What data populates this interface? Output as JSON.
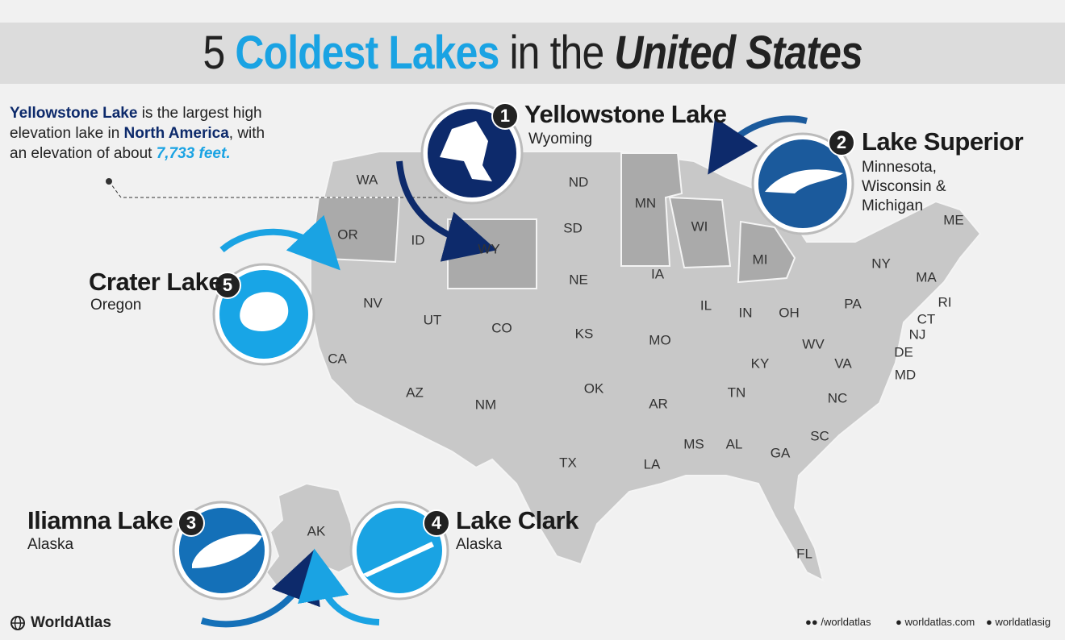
{
  "title": {
    "number": "5",
    "highlight": "Coldest Lakes",
    "middle": "in the",
    "emphasis": "United States"
  },
  "intro": {
    "lake": "Yellowstone Lake",
    "text1": "is the largest high elevation lake in",
    "region": "North America",
    "text2": ", with an elevation of about",
    "elevation": "7,733 feet."
  },
  "lakes": [
    {
      "rank": "1",
      "name": "Yellowstone Lake",
      "location": "Wyoming"
    },
    {
      "rank": "2",
      "name": "Lake Superior",
      "location": "Minnesota, Wisconsin & Michigan"
    },
    {
      "rank": "3",
      "name": "Iliamna Lake",
      "location": "Alaska"
    },
    {
      "rank": "4",
      "name": "Lake Clark",
      "location": "Alaska"
    },
    {
      "rank": "5",
      "name": "Crater Lake",
      "location": "Oregon"
    }
  ],
  "states": [
    "WA",
    "OR",
    "ID",
    "WY",
    "ND",
    "SD",
    "NE",
    "MN",
    "WI",
    "MI",
    "IA",
    "IL",
    "IN",
    "OH",
    "NY",
    "PA",
    "ME",
    "MA",
    "RI",
    "CT",
    "NJ",
    "DE",
    "MD",
    "NV",
    "UT",
    "CO",
    "CA",
    "AZ",
    "NM",
    "KS",
    "MO",
    "KY",
    "WV",
    "VA",
    "OK",
    "AR",
    "TN",
    "NC",
    "SC",
    "MS",
    "AL",
    "GA",
    "LA",
    "TX",
    "FL",
    "AK"
  ],
  "footer": {
    "brand": "WorldAtlas",
    "social": "/worldatlas",
    "website": "worldatlas.com",
    "instagram": "worldatlasig"
  }
}
